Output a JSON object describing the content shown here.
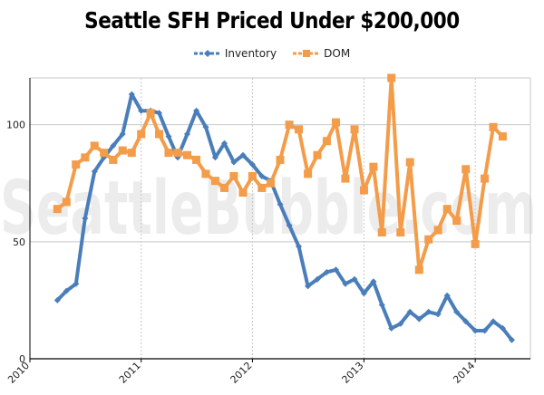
{
  "title": "Seattle SFH Priced Under $200,000",
  "watermark": "SeattleBubble.com",
  "colors": {
    "inventory": "#4a7ebb",
    "dom": "#f39c4a",
    "grid": "#c8c8c8",
    "axis": "#000000"
  },
  "chart_data": {
    "type": "line",
    "title": "Seattle SFH Priced Under $200,000",
    "xlabel": "",
    "ylabel": "",
    "ylim": [
      0,
      120
    ],
    "xlim": [
      "2010-01-01",
      "2014-07-01"
    ],
    "y_ticks": [
      0,
      50,
      100
    ],
    "x_ticks": [
      {
        "date": "2010-01-01",
        "label": "2010"
      },
      {
        "date": "2011-01-01",
        "label": "2011"
      },
      {
        "date": "2012-01-01",
        "label": "2012"
      },
      {
        "date": "2013-01-01",
        "label": "2013"
      },
      {
        "date": "2014-01-01",
        "label": "2014"
      }
    ],
    "grid": true,
    "legend": "top-center",
    "x": [
      "2010-04",
      "2010-05",
      "2010-06",
      "2010-07",
      "2010-08",
      "2010-09",
      "2010-10",
      "2010-11",
      "2010-12",
      "2011-01",
      "2011-02",
      "2011-03",
      "2011-04",
      "2011-05",
      "2011-06",
      "2011-07",
      "2011-08",
      "2011-09",
      "2011-10",
      "2011-11",
      "2011-12",
      "2012-01",
      "2012-02",
      "2012-03",
      "2012-04",
      "2012-05",
      "2012-06",
      "2012-07",
      "2012-08",
      "2012-09",
      "2012-10",
      "2012-11",
      "2012-12",
      "2013-01",
      "2013-02",
      "2013-03",
      "2013-04",
      "2013-05",
      "2013-06",
      "2013-07",
      "2013-08",
      "2013-09",
      "2013-10",
      "2013-11",
      "2013-12",
      "2014-01",
      "2014-02",
      "2014-03",
      "2014-04",
      "2014-05"
    ],
    "series": [
      {
        "name": "Inventory",
        "key": "inventory",
        "marker": "diamond",
        "values": [
          25,
          29,
          32,
          60,
          80,
          86,
          91,
          96,
          113,
          106,
          106,
          105,
          95,
          86,
          96,
          106,
          99,
          86,
          92,
          84,
          87,
          83,
          78,
          76,
          66,
          57,
          48,
          31,
          34,
          37,
          38,
          32,
          34,
          28,
          33,
          23,
          13,
          15,
          20,
          17,
          20,
          19,
          27,
          20,
          16,
          12,
          12,
          16,
          13,
          8
        ]
      },
      {
        "name": "DOM",
        "key": "dom",
        "marker": "square",
        "values": [
          64,
          67,
          83,
          86,
          91,
          88,
          85,
          89,
          88,
          96,
          105,
          96,
          88,
          88,
          87,
          85,
          79,
          76,
          73,
          78,
          71,
          78,
          73,
          75,
          85,
          100,
          98,
          79,
          87,
          93,
          101,
          77,
          98,
          72,
          82,
          54,
          120,
          54,
          84,
          38,
          51,
          55,
          64,
          59,
          81,
          49,
          77,
          99,
          95,
          null
        ]
      }
    ]
  }
}
